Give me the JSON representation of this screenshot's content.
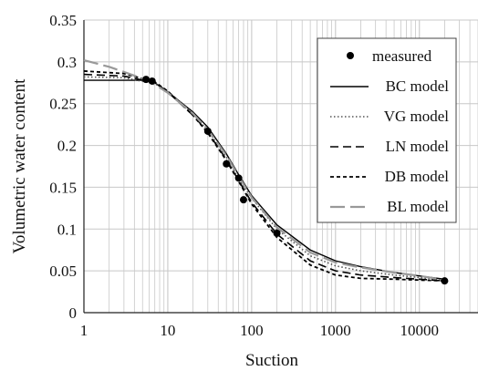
{
  "chart_data": {
    "type": "line",
    "title": "",
    "xlabel": "Suction",
    "ylabel": "Volumetric water content",
    "x_scale": "log",
    "xlim": [
      1,
      50000
    ],
    "ylim": [
      0,
      0.35
    ],
    "x_tick_labels": [
      "1",
      "10",
      "100",
      "1000",
      "10000"
    ],
    "y_tick_labels": [
      "0",
      "0.05",
      "0.1",
      "0.15",
      "0.2",
      "0.25",
      "0.3",
      "0.35"
    ],
    "grid": true,
    "legend_position": "top-right",
    "series": [
      {
        "name": "measured",
        "style": "markers",
        "color": "#000000",
        "x": [
          5.5,
          6.5,
          30,
          50,
          70,
          80,
          200,
          20000
        ],
        "y": [
          0.279,
          0.277,
          0.217,
          0.178,
          0.161,
          0.135,
          0.095,
          0.038
        ]
      },
      {
        "name": "BC model",
        "style": "solid",
        "color": "#000000",
        "x": [
          1,
          5,
          7,
          10,
          20,
          30,
          50,
          70,
          100,
          200,
          500,
          1000,
          2000,
          5000,
          10000,
          20000
        ],
        "y": [
          0.278,
          0.278,
          0.275,
          0.264,
          0.24,
          0.222,
          0.19,
          0.165,
          0.14,
          0.105,
          0.075,
          0.062,
          0.055,
          0.048,
          0.044,
          0.04
        ]
      },
      {
        "name": "VG model",
        "style": "dotted",
        "color": "#555555",
        "x": [
          1,
          3,
          7,
          10,
          20,
          30,
          50,
          70,
          100,
          200,
          500,
          1000,
          2000,
          5000,
          10000,
          20000
        ],
        "y": [
          0.282,
          0.281,
          0.274,
          0.265,
          0.238,
          0.218,
          0.186,
          0.16,
          0.137,
          0.1,
          0.068,
          0.056,
          0.05,
          0.045,
          0.042,
          0.039
        ]
      },
      {
        "name": "LN model",
        "style": "dashed",
        "color": "#000000",
        "x": [
          1,
          3,
          7,
          10,
          20,
          30,
          50,
          70,
          100,
          200,
          500,
          1000,
          2000,
          5000,
          10000,
          20000
        ],
        "y": [
          0.285,
          0.283,
          0.275,
          0.264,
          0.236,
          0.216,
          0.183,
          0.158,
          0.132,
          0.094,
          0.062,
          0.05,
          0.045,
          0.042,
          0.04,
          0.038
        ]
      },
      {
        "name": "DB model",
        "style": "short-dash",
        "color": "#000000",
        "x": [
          1,
          3,
          7,
          10,
          20,
          30,
          50,
          70,
          100,
          200,
          500,
          1000,
          2000,
          5000,
          10000,
          20000
        ],
        "y": [
          0.289,
          0.286,
          0.276,
          0.265,
          0.236,
          0.215,
          0.182,
          0.157,
          0.13,
          0.09,
          0.057,
          0.045,
          0.041,
          0.04,
          0.039,
          0.038
        ]
      },
      {
        "name": "BL model",
        "style": "long-dash",
        "color": "#999999",
        "x": [
          1,
          2,
          3,
          5,
          7,
          10,
          20,
          30,
          50,
          70,
          100,
          200,
          500,
          1000,
          2000,
          5000,
          10000,
          20000
        ],
        "y": [
          0.302,
          0.294,
          0.288,
          0.28,
          0.273,
          0.263,
          0.238,
          0.219,
          0.188,
          0.163,
          0.138,
          0.102,
          0.072,
          0.06,
          0.054,
          0.048,
          0.044,
          0.039
        ]
      }
    ]
  }
}
